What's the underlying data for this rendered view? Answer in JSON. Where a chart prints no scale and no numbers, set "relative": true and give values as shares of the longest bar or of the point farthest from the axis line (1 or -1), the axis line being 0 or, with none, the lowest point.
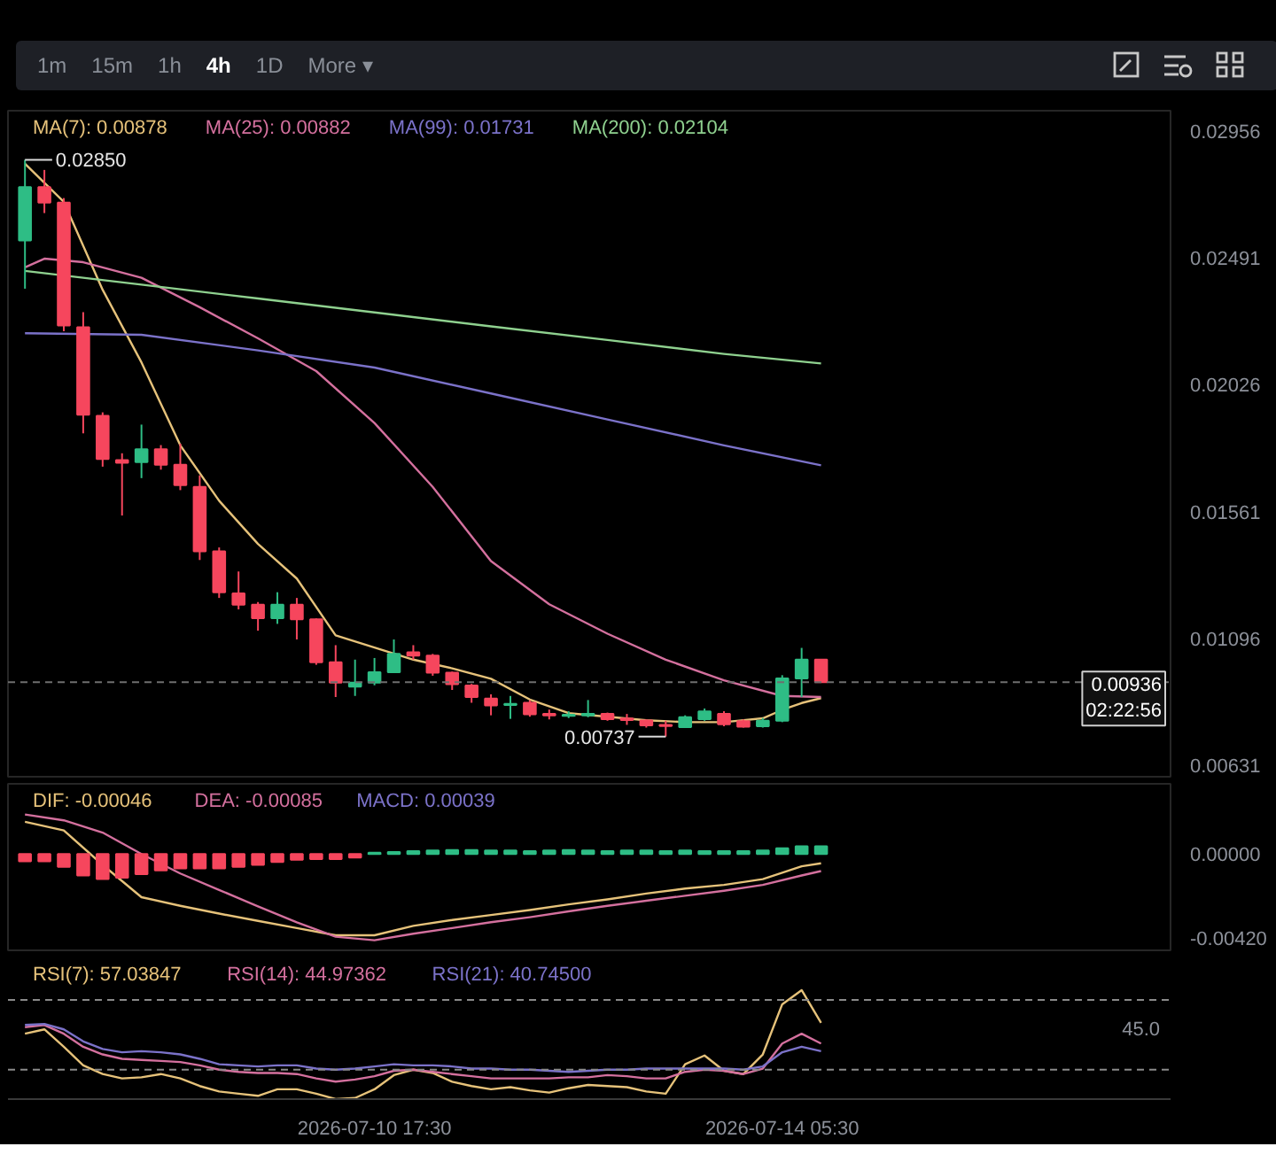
{
  "chart_data": [
    {
      "type": "candlestick",
      "tick_labels": "y",
      "legend": "top left",
      "x": [
        "2026-07-07T17:30",
        "2026-07-07T21:30",
        "2026-07-08T01:30",
        "2026-07-08T05:30",
        "2026-07-08T09:30",
        "2026-07-08T13:30",
        "2026-07-08T17:30",
        "2026-07-08T21:30",
        "2026-07-09T01:30",
        "2026-07-09T05:30",
        "2026-07-09T09:30",
        "2026-07-09T13:30",
        "2026-07-09T17:30",
        "2026-07-09T21:30",
        "2026-07-10T01:30",
        "2026-07-10T05:30",
        "2026-07-10T09:30",
        "2026-07-10T13:30",
        "2026-07-10T17:30",
        "2026-07-10T21:30",
        "2026-07-11T01:30",
        "2026-07-11T05:30",
        "2026-07-11T09:30",
        "2026-07-11T13:30",
        "2026-07-11T17:30",
        "2026-07-11T21:30",
        "2026-07-12T01:30",
        "2026-07-12T05:30",
        "2026-07-12T09:30",
        "2026-07-12T13:30",
        "2026-07-12T17:30",
        "2026-07-12T21:30",
        "2026-07-13T01:30",
        "2026-07-13T05:30",
        "2026-07-13T09:30",
        "2026-07-13T13:30",
        "2026-07-13T17:30",
        "2026-07-13T21:30",
        "2026-07-14T01:30",
        "2026-07-14T05:30",
        "2026-07-14T09:30",
        "2026-07-14T13:30"
      ],
      "ohlc": [
        [
          0.02555,
          0.0285,
          0.02378,
          0.0275
        ],
        [
          0.0275,
          0.02813,
          0.02655,
          0.02693
        ],
        [
          0.02693,
          0.0271,
          0.02222,
          0.02243
        ],
        [
          0.02237,
          0.02292,
          0.01848,
          0.01916
        ],
        [
          0.01912,
          0.01925,
          0.01726,
          0.01754
        ],
        [
          0.0175,
          0.01775,
          0.01547,
          0.0174
        ],
        [
          0.01743,
          0.0188,
          0.01684,
          0.0179
        ],
        [
          0.0179,
          0.01805,
          0.01715,
          0.01733
        ],
        [
          0.01733,
          0.0181,
          0.0164,
          0.01658
        ],
        [
          0.01652,
          0.01694,
          0.01384,
          0.01416
        ],
        [
          0.01416,
          0.0143,
          0.01245,
          0.01266
        ],
        [
          0.01262,
          0.01342,
          0.01203,
          0.0122
        ],
        [
          0.0122,
          0.0123,
          0.01125,
          0.01171
        ],
        [
          0.01171,
          0.01266,
          0.0115,
          0.0122
        ],
        [
          0.0122,
          0.01245,
          0.01093,
          0.01167
        ],
        [
          0.01167,
          0.0117,
          0.01,
          0.01009
        ],
        [
          0.01009,
          0.01072,
          0.00882,
          0.00935
        ],
        [
          0.0092,
          0.01019,
          0.00886,
          0.00935
        ],
        [
          0.00935,
          0.01025,
          0.00925,
          0.00973
        ],
        [
          0.00973,
          0.01093,
          0.0097,
          0.0104
        ],
        [
          0.01046,
          0.01072,
          0.01019,
          0.01034
        ],
        [
          0.01034,
          0.0104,
          0.0096,
          0.00971
        ],
        [
          0.00971,
          0.00975,
          0.00908,
          0.00929
        ],
        [
          0.00924,
          0.0093,
          0.00861,
          0.00882
        ],
        [
          0.00876,
          0.00892,
          0.00815,
          0.00851
        ],
        [
          0.00853,
          0.00886,
          0.00802,
          0.00857
        ],
        [
          0.00861,
          0.0087,
          0.0081,
          0.00819
        ],
        [
          0.0082,
          0.00836,
          0.008,
          0.00815
        ],
        [
          0.00813,
          0.0083,
          0.00805,
          0.00817
        ],
        [
          0.00815,
          0.00871,
          0.00808,
          0.0082
        ],
        [
          0.0082,
          0.00825,
          0.00795,
          0.00801
        ],
        [
          0.00803,
          0.0082,
          0.0078,
          0.00798
        ],
        [
          0.00796,
          0.008,
          0.0077,
          0.00778
        ],
        [
          0.0078,
          0.00795,
          0.00737,
          0.00776
        ],
        [
          0.00772,
          0.00815,
          0.0077,
          0.00808
        ],
        [
          0.00801,
          0.0084,
          0.00795,
          0.00829
        ],
        [
          0.0082,
          0.0083,
          0.00775,
          0.00782
        ],
        [
          0.00794,
          0.008,
          0.0077,
          0.00773
        ],
        [
          0.00775,
          0.00805,
          0.0077,
          0.00795
        ],
        [
          0.00795,
          0.00962,
          0.0079,
          0.0095
        ],
        [
          0.0095,
          0.01062,
          0.00882,
          0.01019
        ],
        [
          0.01019,
          0.0102,
          0.00936,
          0.00936
        ]
      ],
      "colors": [
        "#2ebd85",
        "#f6465d",
        "#f6465d",
        "#f6465d",
        "#f6465d",
        "#f6465d",
        "#2ebd85",
        "#f6465d",
        "#f6465d",
        "#f6465d",
        "#f6465d",
        "#f6465d",
        "#f6465d",
        "#2ebd85",
        "#f6465d",
        "#f6465d",
        "#f6465d",
        "#2ebd85",
        "#2ebd85",
        "#2ebd85",
        "#f6465d",
        "#f6465d",
        "#f6465d",
        "#f6465d",
        "#f6465d",
        "#2ebd85",
        "#f6465d",
        "#f6465d",
        "#2ebd85",
        "#2ebd85",
        "#f6465d",
        "#f6465d",
        "#f6465d",
        "#f6465d",
        "#2ebd85",
        "#2ebd85",
        "#f6465d",
        "#f6465d",
        "#2ebd85",
        "#2ebd85",
        "#2ebd85",
        "#f6465d"
      ],
      "series": [
        {
          "name": "MA(7): 0.00878",
          "type": "line",
          "color": "#e6c27a",
          "x": [
            "2026-07-07T17:30",
            "2026-07-08T01:30",
            "2026-07-08T09:30",
            "2026-07-08T17:30",
            "2026-07-09T01:30",
            "2026-07-09T09:30",
            "2026-07-09T17:30",
            "2026-07-10T01:30",
            "2026-07-10T09:30",
            "2026-07-10T17:30",
            "2026-07-11T01:30",
            "2026-07-11T09:30",
            "2026-07-11T17:30",
            "2026-07-12T01:30",
            "2026-07-12T09:30",
            "2026-07-12T17:30",
            "2026-07-13T01:30",
            "2026-07-13T09:30",
            "2026-07-13T17:30",
            "2026-07-14T01:30",
            "2026-07-14T05:30",
            "2026-07-14T09:30",
            "2026-07-14T13:30"
          ],
          "values": [
            0.02836,
            0.02696,
            0.02374,
            0.02108,
            0.01804,
            0.01601,
            0.01443,
            0.01316,
            0.01108,
            0.01063,
            0.01019,
            0.00987,
            0.00949,
            0.00873,
            0.00823,
            0.0081,
            0.00797,
            0.0079,
            0.0079,
            0.00804,
            0.00835,
            0.0086,
            0.00878
          ]
        },
        {
          "name": "MA(25): 0.00882",
          "type": "line",
          "color": "#d4709e",
          "x": [
            "2026-07-07T17:30",
            "2026-07-07T21:30",
            "2026-07-08T05:30",
            "2026-07-08T17:30",
            "2026-07-09T05:30",
            "2026-07-09T17:30",
            "2026-07-10T05:30",
            "2026-07-10T17:30",
            "2026-07-11T05:30",
            "2026-07-11T17:30",
            "2026-07-12T05:30",
            "2026-07-12T17:30",
            "2026-07-13T05:30",
            "2026-07-13T17:30",
            "2026-07-14T05:30",
            "2026-07-14T13:30"
          ],
          "values": [
            0.02456,
            0.02488,
            0.02475,
            0.02418,
            0.0231,
            0.02196,
            0.02076,
            0.01886,
            0.01652,
            0.0138,
            0.01222,
            0.01114,
            0.01019,
            0.00943,
            0.00886,
            0.00882
          ]
        },
        {
          "name": "MA(99): 0.01731",
          "type": "line",
          "color": "#7b72c9",
          "x": [
            "2026-07-07T17:30",
            "2026-07-08T17:30",
            "2026-07-09T17:30",
            "2026-07-10T17:30",
            "2026-07-11T17:30",
            "2026-07-12T17:30",
            "2026-07-13T17:30",
            "2026-07-14T13:30"
          ],
          "values": [
            0.02215,
            0.02209,
            0.02152,
            0.02089,
            0.01994,
            0.01899,
            0.01804,
            0.01731
          ]
        },
        {
          "name": "MA(200): 0.02104",
          "type": "line",
          "color": "#8fd18f",
          "x": [
            "2026-07-07T17:30",
            "2026-07-08T17:30",
            "2026-07-09T17:30",
            "2026-07-10T17:30",
            "2026-07-11T17:30",
            "2026-07-12T17:30",
            "2026-07-13T17:30",
            "2026-07-14T13:30"
          ],
          "values": [
            0.02443,
            0.02393,
            0.02342,
            0.02291,
            0.0224,
            0.0219,
            0.02139,
            0.02104
          ]
        }
      ],
      "xlim": [
        "2026-07-07T14:00",
        "2026-07-17T13:30"
      ],
      "ylim": [
        0.0059,
        0.0303
      ],
      "yticks": [
        0.00631,
        0.01096,
        0.01561,
        0.02026,
        0.02491,
        0.02956
      ],
      "ref_lines": [
        {
          "axis": "y",
          "value": 0.00936,
          "label": "0.00936\n02:22:56",
          "line_style": "dashed",
          "color": "#6e6e6e"
        }
      ],
      "annotations": [
        "1m",
        "15m",
        "1h",
        "4h",
        "1D",
        "More ▾",
        {
          "text": "0.02850",
          "x": "2026-07-07T17:30",
          "y": 0.0285
        },
        {
          "text": "0.00737",
          "x": "2026-07-13T05:30",
          "y": 0.00737
        }
      ]
    },
    {
      "type": "bar",
      "tick_labels": "y",
      "legend": "top left",
      "x": [
        "2026-07-07T17:30",
        "2026-07-07T21:30",
        "2026-07-08T01:30",
        "2026-07-08T05:30",
        "2026-07-08T09:30",
        "2026-07-08T13:30",
        "2026-07-08T17:30",
        "2026-07-08T21:30",
        "2026-07-09T01:30",
        "2026-07-09T05:30",
        "2026-07-09T09:30",
        "2026-07-09T13:30",
        "2026-07-09T17:30",
        "2026-07-09T21:30",
        "2026-07-10T01:30",
        "2026-07-10T05:30",
        "2026-07-10T09:30",
        "2026-07-10T13:30",
        "2026-07-10T17:30",
        "2026-07-10T21:30",
        "2026-07-11T01:30",
        "2026-07-11T05:30",
        "2026-07-11T09:30",
        "2026-07-11T13:30",
        "2026-07-11T17:30",
        "2026-07-11T21:30",
        "2026-07-12T01:30",
        "2026-07-12T05:30",
        "2026-07-12T09:30",
        "2026-07-12T13:30",
        "2026-07-12T17:30",
        "2026-07-12T21:30",
        "2026-07-13T01:30",
        "2026-07-13T05:30",
        "2026-07-13T09:30",
        "2026-07-13T13:30",
        "2026-07-13T17:30",
        "2026-07-13T21:30",
        "2026-07-14T01:30",
        "2026-07-14T05:30",
        "2026-07-14T09:30",
        "2026-07-14T13:30"
      ],
      "series": [
        {
          "name": "DIF: -0.00046",
          "type": "line",
          "color": "#e6c27a",
          "x": [
            "2026-07-07T17:30",
            "2026-07-08T01:30",
            "2026-07-08T09:30",
            "2026-07-08T17:30",
            "2026-07-09T01:30",
            "2026-07-09T09:30",
            "2026-07-09T17:30",
            "2026-07-10T01:30",
            "2026-07-10T09:30",
            "2026-07-10T17:30",
            "2026-07-11T01:30",
            "2026-07-11T09:30",
            "2026-07-11T17:30",
            "2026-07-12T01:30",
            "2026-07-12T09:30",
            "2026-07-12T17:30",
            "2026-07-13T01:30",
            "2026-07-13T09:30",
            "2026-07-13T17:30",
            "2026-07-14T01:30",
            "2026-07-14T09:30",
            "2026-07-14T13:30"
          ],
          "values": [
            0.00161,
            0.00118,
            -0.00054,
            -0.00215,
            -0.00258,
            -0.00297,
            -0.00333,
            -0.00369,
            -0.00405,
            -0.00405,
            -0.00358,
            -0.00329,
            -0.00304,
            -0.00279,
            -0.00251,
            -0.00226,
            -0.00197,
            -0.00172,
            -0.00154,
            -0.00125,
            -0.00061,
            -0.00046
          ]
        },
        {
          "name": "DEA: -0.00085",
          "type": "line",
          "color": "#d4709e",
          "x": [
            "2026-07-07T17:30",
            "2026-07-08T01:30",
            "2026-07-08T09:30",
            "2026-07-08T17:30",
            "2026-07-09T01:30",
            "2026-07-09T09:30",
            "2026-07-09T17:30",
            "2026-07-10T01:30",
            "2026-07-10T09:30",
            "2026-07-10T17:30",
            "2026-07-11T01:30",
            "2026-07-11T09:30",
            "2026-07-11T17:30",
            "2026-07-12T01:30",
            "2026-07-12T09:30",
            "2026-07-12T17:30",
            "2026-07-13T01:30",
            "2026-07-13T09:30",
            "2026-07-13T17:30",
            "2026-07-14T01:30",
            "2026-07-14T09:30",
            "2026-07-14T13:30"
          ],
          "values": [
            0.00197,
            0.00168,
            0.00107,
            0,
            -0.00097,
            -0.00179,
            -0.00261,
            -0.0034,
            -0.00412,
            -0.0043,
            -0.00397,
            -0.00369,
            -0.0034,
            -0.00315,
            -0.00286,
            -0.00258,
            -0.00233,
            -0.00208,
            -0.00183,
            -0.00154,
            -0.00107,
            -0.00085
          ]
        },
        {
          "name": "MACD: 0.00039",
          "type": "bar",
          "color": "#7b72c9",
          "values": [
            -0.00036,
            -0.00036,
            -0.00064,
            -0.00107,
            -0.00125,
            -0.00118,
            -0.001,
            -0.00082,
            -0.00072,
            -0.00072,
            -0.00072,
            -0.00064,
            -0.00054,
            -0.0004,
            -0.00029,
            -0.00025,
            -0.00025,
            -0.00018,
            7e-05,
            0.0001,
            0.00014,
            0.00018,
            0.0002,
            0.0002,
            0.00018,
            0.00018,
            0.00014,
            0.00018,
            0.0002,
            0.00018,
            0.00014,
            0.00018,
            0.00018,
            0.00014,
            0.00018,
            0.00014,
            0.00014,
            0.00014,
            0.00018,
            0.00029,
            0.00039,
            0.00039
          ],
          "colors": [
            "#f6465d",
            "#f6465d",
            "#f6465d",
            "#f6465d",
            "#f6465d",
            "#f6465d",
            "#f6465d",
            "#f6465d",
            "#f6465d",
            "#f6465d",
            "#f6465d",
            "#f6465d",
            "#f6465d",
            "#f6465d",
            "#f6465d",
            "#f6465d",
            "#f6465d",
            "#f6465d",
            "#2ebd85",
            "#2ebd85",
            "#2ebd85",
            "#2ebd85",
            "#2ebd85",
            "#2ebd85",
            "#2ebd85",
            "#2ebd85",
            "#2ebd85",
            "#2ebd85",
            "#2ebd85",
            "#2ebd85",
            "#2ebd85",
            "#2ebd85",
            "#2ebd85",
            "#2ebd85",
            "#2ebd85",
            "#2ebd85",
            "#2ebd85",
            "#2ebd85",
            "#2ebd85",
            "#2ebd85",
            "#2ebd85",
            "#2ebd85"
          ]
        }
      ],
      "xlim": [
        "2026-07-07T14:00",
        "2026-07-17T13:30"
      ],
      "ylim": [
        -0.0048,
        0.0035
      ],
      "yticks": [
        {
          "value": 0,
          "label": "0.00000"
        },
        {
          "value": -0.0042,
          "label": "-0.00420"
        }
      ]
    },
    {
      "type": "line",
      "legend": "top left",
      "relative": true,
      "tick_labels": "x",
      "annotations": [
        "45.0"
      ],
      "x": [
        "2026-07-07T17:30",
        "2026-07-07T21:30",
        "2026-07-08T01:30",
        "2026-07-08T05:30",
        "2026-07-08T09:30",
        "2026-07-08T13:30",
        "2026-07-08T17:30",
        "2026-07-08T21:30",
        "2026-07-09T01:30",
        "2026-07-09T05:30",
        "2026-07-09T09:30",
        "2026-07-09T13:30",
        "2026-07-09T17:30",
        "2026-07-09T21:30",
        "2026-07-10T01:30",
        "2026-07-10T05:30",
        "2026-07-10T09:30",
        "2026-07-10T13:30",
        "2026-07-10T17:30",
        "2026-07-10T21:30",
        "2026-07-11T01:30",
        "2026-07-11T05:30",
        "2026-07-11T09:30",
        "2026-07-11T13:30",
        "2026-07-11T17:30",
        "2026-07-11T21:30",
        "2026-07-12T01:30",
        "2026-07-12T05:30",
        "2026-07-12T09:30",
        "2026-07-12T13:30",
        "2026-07-12T17:30",
        "2026-07-12T21:30",
        "2026-07-13T01:30",
        "2026-07-13T05:30",
        "2026-07-13T09:30",
        "2026-07-13T13:30",
        "2026-07-13T17:30",
        "2026-07-13T21:30",
        "2026-07-14T01:30",
        "2026-07-14T05:30",
        "2026-07-14T09:30",
        "2026-07-14T13:30"
      ],
      "series": [
        {
          "name": "RSI(7): 57.03847",
          "color": "#e6c27a",
          "values": [
            0.6,
            0.64,
            0.48,
            0.31,
            0.23,
            0.19,
            0.2,
            0.23,
            0.19,
            0.12,
            0.07,
            0.05,
            0.03,
            0.09,
            0.09,
            0.05,
            0,
            0.01,
            0.09,
            0.22,
            0.27,
            0.24,
            0.16,
            0.12,
            0.09,
            0.11,
            0.08,
            0.06,
            0.1,
            0.13,
            0.12,
            0.11,
            0.07,
            0.05,
            0.32,
            0.4,
            0.26,
            0.23,
            0.41,
            0.87,
            1,
            0.7
          ]
        },
        {
          "name": "RSI(14): 44.97362",
          "color": "#d4709e",
          "values": [
            0.66,
            0.68,
            0.6,
            0.48,
            0.41,
            0.37,
            0.36,
            0.35,
            0.34,
            0.31,
            0.27,
            0.25,
            0.24,
            0.24,
            0.23,
            0.19,
            0.16,
            0.18,
            0.21,
            0.26,
            0.27,
            0.25,
            0.23,
            0.21,
            0.19,
            0.19,
            0.19,
            0.19,
            0.2,
            0.2,
            0.22,
            0.21,
            0.19,
            0.19,
            0.25,
            0.27,
            0.26,
            0.23,
            0.28,
            0.51,
            0.6,
            0.51
          ]
        },
        {
          "name": "RSI(21): 40.74500",
          "color": "#7b72c9",
          "values": [
            0.68,
            0.69,
            0.64,
            0.53,
            0.46,
            0.43,
            0.44,
            0.43,
            0.41,
            0.37,
            0.32,
            0.31,
            0.3,
            0.31,
            0.31,
            0.28,
            0.27,
            0.28,
            0.3,
            0.32,
            0.31,
            0.31,
            0.3,
            0.28,
            0.28,
            0.27,
            0.27,
            0.26,
            0.25,
            0.26,
            0.27,
            0.27,
            0.28,
            0.28,
            0.28,
            0.28,
            0.28,
            0.27,
            0.3,
            0.43,
            0.48,
            0.44
          ]
        }
      ],
      "xlim": [
        "2026-07-07T14:00",
        "2026-07-17T13:30"
      ],
      "xticks": [
        {
          "value": "2026-07-10T17:30",
          "label": "2026-07-10 17:30"
        },
        {
          "value": "2026-07-14T05:30",
          "label": "2026-07-14 05:30"
        }
      ],
      "ref_lines": [
        {
          "axis": "y",
          "value": 0.91,
          "line_style": "dashed",
          "color": "#8a8a8a"
        },
        {
          "axis": "y",
          "value": 0.27,
          "line_style": "dashed",
          "color": "#8a8a8a"
        }
      ]
    }
  ]
}
